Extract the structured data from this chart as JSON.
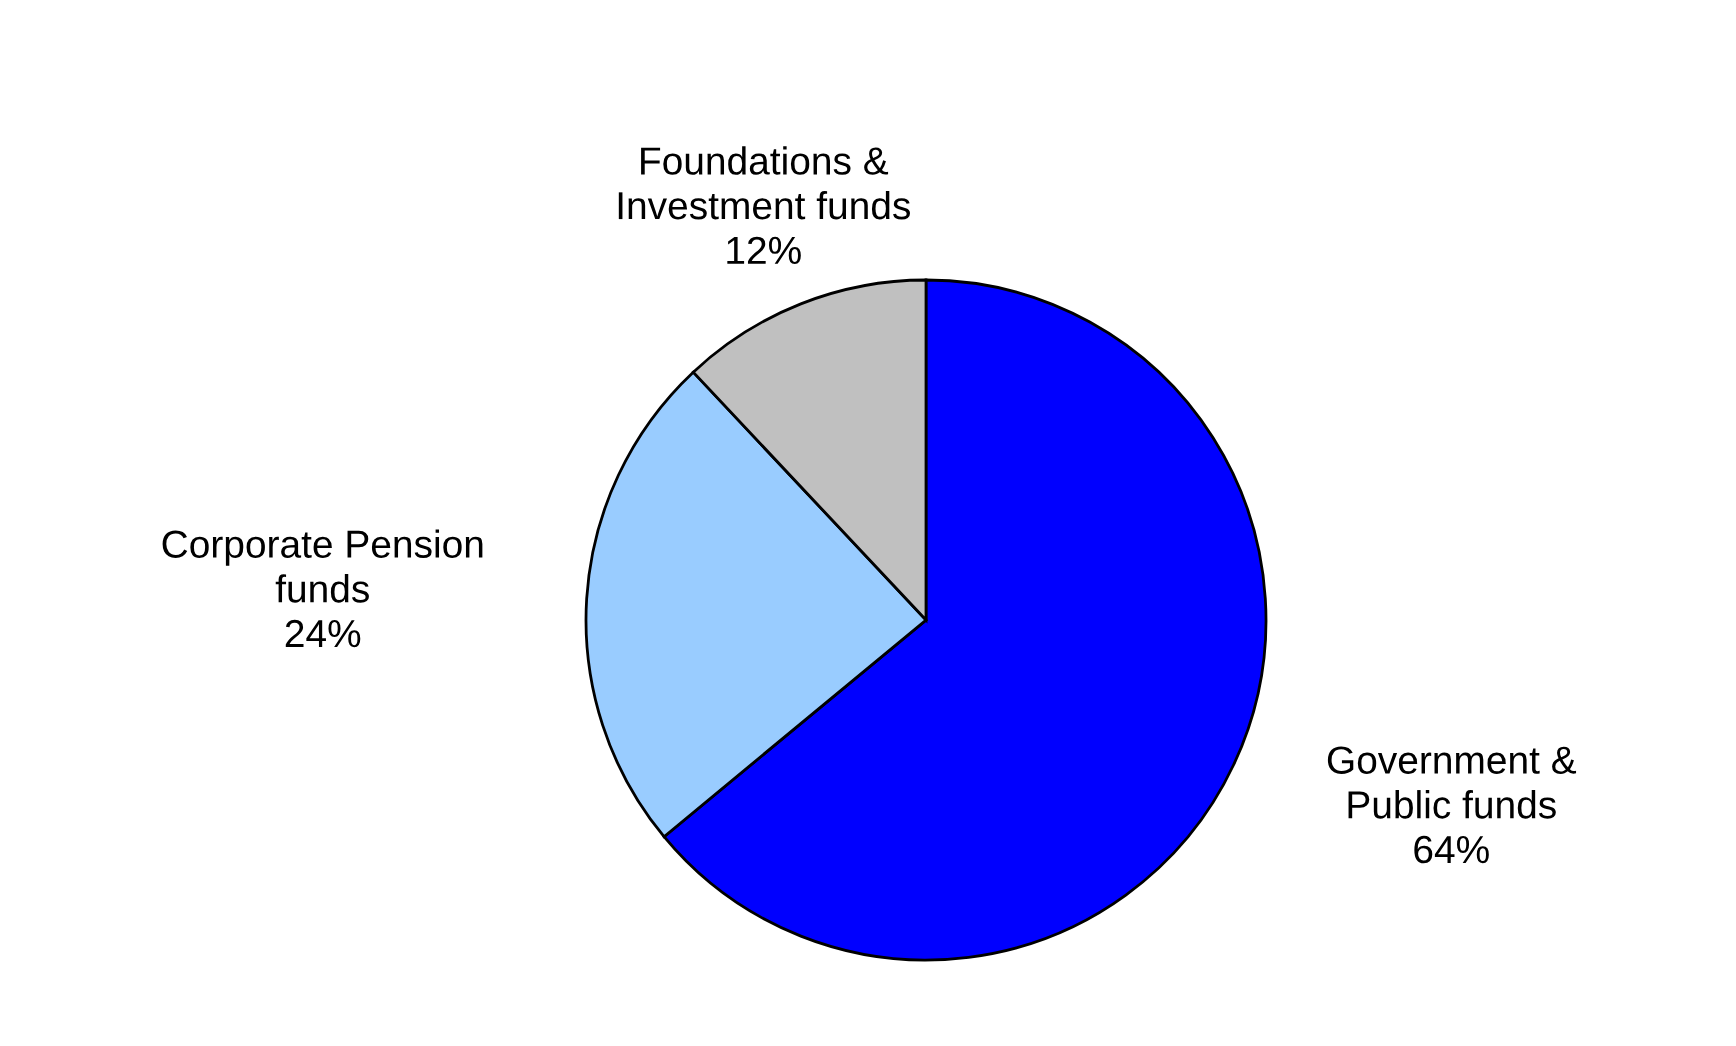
{
  "chart_data": {
    "type": "pie",
    "categories": [
      "Government &\nPublic funds",
      "Corporate Pension\nfunds",
      "Foundations &\nInvestment funds"
    ],
    "values": [
      64,
      24,
      12
    ],
    "value_labels": [
      "64%",
      "24%",
      "12%"
    ],
    "colors": [
      "#0000ff",
      "#99ccff",
      "#c0c0c0"
    ]
  }
}
